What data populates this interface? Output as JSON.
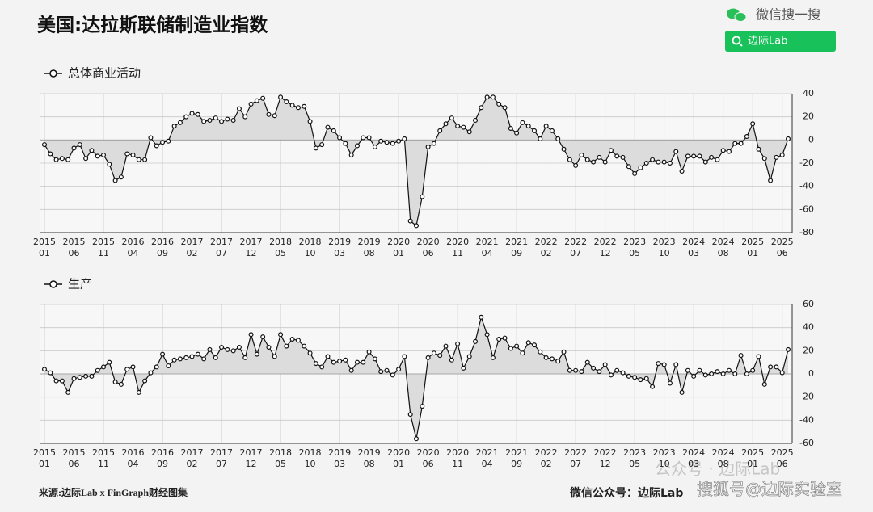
{
  "header": {
    "title": "美国:达拉斯联储制造业指数",
    "search_label": "微信搜一搜",
    "search_button": "边际Lab"
  },
  "footer": {
    "source": "来源:边际Lab x FinGraph财经图集",
    "account": "微信公众号：边际Lab",
    "watermarks": [
      "公众号 · 边际Lab",
      "搜狐号@边际实验室"
    ]
  },
  "chart_data": [
    {
      "type": "line",
      "ylim": [
        -80,
        40
      ],
      "yticks": [
        -80,
        -60,
        -40,
        -20,
        0,
        20,
        40
      ],
      "grid": true,
      "area_fill": "#dcdcdc",
      "categories": [
        "2015 01",
        null,
        null,
        null,
        null,
        "2015 06",
        null,
        null,
        null,
        null,
        "2015 11",
        null,
        null,
        null,
        null,
        "2016 04",
        null,
        null,
        null,
        null,
        "2016 09",
        null,
        null,
        null,
        null,
        "2017 02",
        null,
        null,
        null,
        null,
        "2017 07",
        null,
        null,
        null,
        null,
        "2017 12",
        null,
        null,
        null,
        null,
        "2018 05",
        null,
        null,
        null,
        null,
        "2018 10",
        null,
        null,
        null,
        null,
        "2019 03",
        null,
        null,
        null,
        null,
        "2019 08",
        null,
        null,
        null,
        null,
        "2020 01",
        null,
        null,
        null,
        null,
        "2020 06",
        null,
        null,
        null,
        null,
        "2020 11",
        null,
        null,
        null,
        null,
        "2021 04",
        null,
        null,
        null,
        null,
        "2021 09",
        null,
        null,
        null,
        null,
        "2022 02",
        null,
        null,
        null,
        null,
        "2022 07",
        null,
        null,
        null,
        null,
        "2022 12",
        null,
        null,
        null,
        null,
        "2023 05",
        null,
        null,
        null,
        null,
        "2023 10",
        null,
        null,
        null,
        null,
        "2024 03",
        null,
        null,
        null,
        null,
        "2024 08",
        null,
        null,
        null,
        null,
        "2025 01",
        null,
        null,
        null,
        null,
        "2025 06",
        null
      ],
      "series": [
        {
          "name": "总体商业活动",
          "color": "#111111",
          "values": [
            -4,
            -12,
            -17,
            -16,
            -17,
            -7,
            -4,
            -16,
            -9,
            -14,
            -13,
            -21,
            -35,
            -32,
            -12,
            -13,
            -17,
            -17,
            2,
            -5,
            -2,
            -1,
            12,
            15,
            20,
            23,
            22,
            16,
            17,
            19,
            16,
            18,
            17,
            27,
            20,
            31,
            34,
            36,
            22,
            21,
            37,
            33,
            30,
            28,
            29,
            16,
            -7,
            -4,
            11,
            8,
            2,
            -3,
            -13,
            -5,
            2,
            2,
            -6,
            -1,
            -2,
            -3,
            -1,
            1,
            -70,
            -74,
            -49,
            -6,
            -3,
            8,
            14,
            19,
            12,
            11,
            7,
            17,
            28,
            37,
            37,
            31,
            28,
            10,
            6,
            15,
            12,
            8,
            1,
            12,
            8,
            1,
            -8,
            -17,
            -22,
            -13,
            -17,
            -19,
            -15,
            -19,
            -9,
            -14,
            -15,
            -23,
            -29,
            -24,
            -20,
            -17,
            -19,
            -19,
            -20,
            -10,
            -27,
            -14,
            -14,
            -14,
            -19,
            -15,
            -17,
            -9,
            -10,
            -3,
            -3,
            3,
            14,
            -8,
            -16,
            -35,
            -15,
            -13,
            1
          ]
        }
      ]
    },
    {
      "type": "line",
      "ylim": [
        -60,
        60
      ],
      "yticks": [
        -60,
        -40,
        -20,
        0,
        20,
        40,
        60
      ],
      "grid": true,
      "area_fill": "#dcdcdc",
      "categories": [
        "2015 01",
        null,
        null,
        null,
        null,
        "2015 06",
        null,
        null,
        null,
        null,
        "2015 11",
        null,
        null,
        null,
        null,
        "2016 04",
        null,
        null,
        null,
        null,
        "2016 09",
        null,
        null,
        null,
        null,
        "2017 02",
        null,
        null,
        null,
        null,
        "2017 07",
        null,
        null,
        null,
        null,
        "2017 12",
        null,
        null,
        null,
        null,
        "2018 05",
        null,
        null,
        null,
        null,
        "2018 10",
        null,
        null,
        null,
        null,
        "2019 03",
        null,
        null,
        null,
        null,
        "2019 08",
        null,
        null,
        null,
        null,
        "2020 01",
        null,
        null,
        null,
        null,
        "2020 06",
        null,
        null,
        null,
        null,
        "2020 11",
        null,
        null,
        null,
        null,
        "2021 04",
        null,
        null,
        null,
        null,
        "2021 09",
        null,
        null,
        null,
        null,
        "2022 02",
        null,
        null,
        null,
        null,
        "2022 07",
        null,
        null,
        null,
        null,
        "2022 12",
        null,
        null,
        null,
        null,
        "2023 05",
        null,
        null,
        null,
        null,
        "2023 10",
        null,
        null,
        null,
        null,
        "2024 03",
        null,
        null,
        null,
        null,
        "2024 08",
        null,
        null,
        null,
        null,
        "2025 01",
        null,
        null,
        null,
        null,
        "2025 06",
        null
      ],
      "series": [
        {
          "name": "生产",
          "color": "#111111",
          "values": [
            4,
            1,
            -6,
            -6,
            -16,
            -4,
            -3,
            -2,
            -2,
            3,
            6,
            10,
            -7,
            -9,
            4,
            6,
            -16,
            -6,
            1,
            6,
            17,
            7,
            12,
            13,
            14,
            15,
            17,
            13,
            21,
            14,
            23,
            21,
            20,
            23,
            14,
            34,
            17,
            32,
            23,
            15,
            34,
            24,
            30,
            29,
            24,
            18,
            9,
            6,
            15,
            10,
            11,
            12,
            3,
            10,
            10,
            19,
            13,
            2,
            3,
            -1,
            4,
            15,
            -35,
            -56,
            -28,
            14,
            18,
            16,
            24,
            12,
            26,
            5,
            15,
            28,
            49,
            34,
            14,
            30,
            31,
            22,
            24,
            18,
            27,
            25,
            19,
            14,
            13,
            11,
            19,
            3,
            3,
            2,
            10,
            5,
            2,
            8,
            -1,
            3,
            1,
            -2,
            -3,
            -5,
            -4,
            -11,
            9,
            8,
            -8,
            8,
            -16,
            3,
            -2,
            3,
            -1,
            0,
            2,
            0,
            3,
            0,
            16,
            0,
            3,
            15,
            -9,
            6,
            6,
            1,
            21
          ]
        }
      ]
    }
  ]
}
